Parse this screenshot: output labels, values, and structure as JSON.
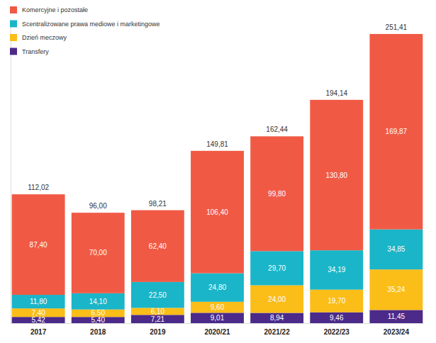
{
  "chart_data": {
    "type": "bar",
    "stacked": true,
    "data_labels": true,
    "tick_labels": "x",
    "legend": "upper left",
    "categories": [
      "2017",
      "2018",
      "2019",
      "2020/21",
      "2021/22",
      "2022/23",
      "2023/24"
    ],
    "ylim": [
      0,
      260
    ],
    "yticks": [],
    "series": [
      {
        "name": "Transfery",
        "color": "#4b2a8a",
        "values": [
          5.42,
          5.4,
          7.21,
          9.01,
          8.94,
          9.46,
          11.45
        ],
        "value_labels": [
          "5,42",
          "5,40",
          "7,21",
          "9,01",
          "8,94",
          "9,46",
          "11,45"
        ]
      },
      {
        "name": "Dzień meczowy",
        "color": "#fbbd18",
        "values": [
          7.4,
          6.5,
          6.1,
          9.6,
          24.0,
          19.7,
          35.24
        ],
        "value_labels": [
          "7,40",
          "6,50",
          "6,10",
          "9,60",
          "24,00",
          "19,70",
          "35,24"
        ]
      },
      {
        "name": "Scentralizowane prawa mediowe i marketingowe",
        "color": "#1ab5c8",
        "values": [
          11.8,
          14.1,
          22.5,
          24.8,
          29.7,
          34.19,
          34.85
        ],
        "value_labels": [
          "11,80",
          "14,10",
          "22,50",
          "24,80",
          "29,70",
          "34,19",
          "34,85"
        ]
      },
      {
        "name": "Komercyjne i pozostałe",
        "color": "#f05a45",
        "values": [
          87.4,
          70.0,
          62.4,
          106.4,
          99.8,
          130.8,
          169.87
        ],
        "value_labels": [
          "87,40",
          "70,00",
          "62,40",
          "106,40",
          "99,80",
          "130,80",
          "169,87"
        ]
      }
    ],
    "totals": [
      112.02,
      96.0,
      98.21,
      149.81,
      162.44,
      194.14,
      251.41
    ],
    "total_labels": [
      "112,02",
      "96,00",
      "98,21",
      "149,81",
      "162,44",
      "194,14",
      "251,41"
    ]
  }
}
